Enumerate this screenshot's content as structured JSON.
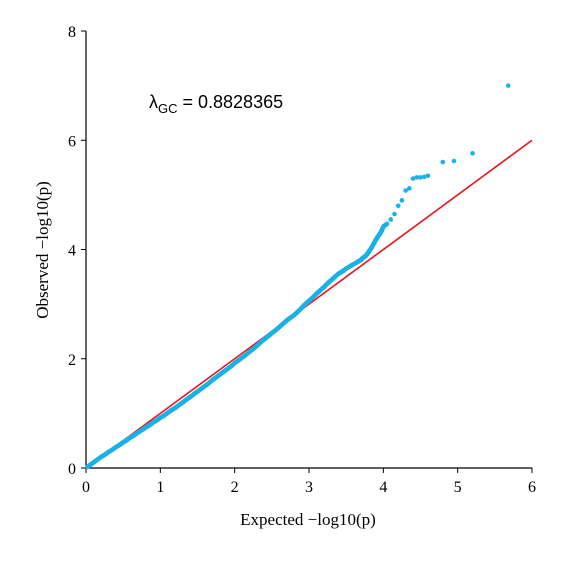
{
  "chart_data": {
    "type": "scatter",
    "xlabel": "Expected  −log10(p)",
    "ylabel": "Observed  −log10(p)",
    "xlim": [
      0,
      6
    ],
    "ylim": [
      0,
      8
    ],
    "xticks": [
      "0",
      "1",
      "2",
      "3",
      "4",
      "5",
      "6"
    ],
    "yticks": [
      "0",
      "2",
      "4",
      "6",
      "8"
    ],
    "grid": false,
    "annotation": {
      "prefix": "λ",
      "sub": "GC",
      "text": " = 0.8828365"
    },
    "reference_line": {
      "x": [
        0,
        6
      ],
      "y": [
        0,
        6
      ],
      "color": "#e8141c"
    },
    "point_color": "#1ab1e6",
    "series": [
      {
        "x": [
          0.02,
          0.05,
          0.1,
          0.15,
          0.2,
          0.25,
          0.3,
          0.35,
          0.4,
          0.45,
          0.5,
          0.55,
          0.6,
          0.65,
          0.7,
          0.75,
          0.8,
          0.85,
          0.9,
          0.95,
          1.0,
          1.05,
          1.1,
          1.15,
          1.2,
          1.25,
          1.3,
          1.35,
          1.4,
          1.45,
          1.5,
          1.55,
          1.6,
          1.65,
          1.7,
          1.75,
          1.8,
          1.85,
          1.9,
          1.95,
          2.0,
          2.05,
          2.1,
          2.15,
          2.2,
          2.25,
          2.3,
          2.35,
          2.4,
          2.45,
          2.5,
          2.55,
          2.6,
          2.65,
          2.7,
          2.75,
          2.8,
          2.85,
          2.9,
          2.95,
          3.0,
          3.05,
          3.1,
          3.15,
          3.2,
          3.25,
          3.3,
          3.35,
          3.4,
          3.45,
          3.5,
          3.55,
          3.6,
          3.65,
          3.7,
          3.72,
          3.74,
          3.76,
          3.78,
          3.8,
          3.82,
          3.84,
          3.86,
          3.88,
          3.9,
          3.92,
          3.94,
          3.96,
          3.98,
          4.0,
          4.05,
          4.1,
          4.15,
          4.2,
          4.25,
          4.3,
          4.35,
          4.4,
          4.45,
          4.5,
          4.55,
          4.6,
          4.8,
          4.95,
          5.2,
          5.68
        ],
        "y": [
          0.02,
          0.05,
          0.1,
          0.15,
          0.2,
          0.24,
          0.29,
          0.33,
          0.38,
          0.42,
          0.47,
          0.51,
          0.56,
          0.6,
          0.65,
          0.69,
          0.74,
          0.78,
          0.83,
          0.87,
          0.92,
          0.96,
          1.01,
          1.06,
          1.1,
          1.15,
          1.2,
          1.25,
          1.3,
          1.35,
          1.4,
          1.45,
          1.5,
          1.55,
          1.61,
          1.66,
          1.71,
          1.76,
          1.81,
          1.86,
          1.92,
          1.97,
          2.02,
          2.07,
          2.13,
          2.18,
          2.24,
          2.3,
          2.36,
          2.41,
          2.47,
          2.52,
          2.58,
          2.64,
          2.7,
          2.75,
          2.8,
          2.86,
          2.93,
          3.0,
          3.06,
          3.12,
          3.19,
          3.25,
          3.31,
          3.38,
          3.44,
          3.5,
          3.56,
          3.6,
          3.65,
          3.69,
          3.73,
          3.77,
          3.81,
          3.84,
          3.86,
          3.88,
          3.91,
          3.95,
          3.99,
          4.03,
          4.08,
          4.13,
          4.18,
          4.22,
          4.26,
          4.3,
          4.35,
          4.42,
          4.47,
          4.55,
          4.65,
          4.8,
          4.9,
          5.08,
          5.12,
          5.3,
          5.32,
          5.32,
          5.33,
          5.35,
          5.6,
          5.62,
          5.76,
          7.0
        ]
      }
    ]
  }
}
